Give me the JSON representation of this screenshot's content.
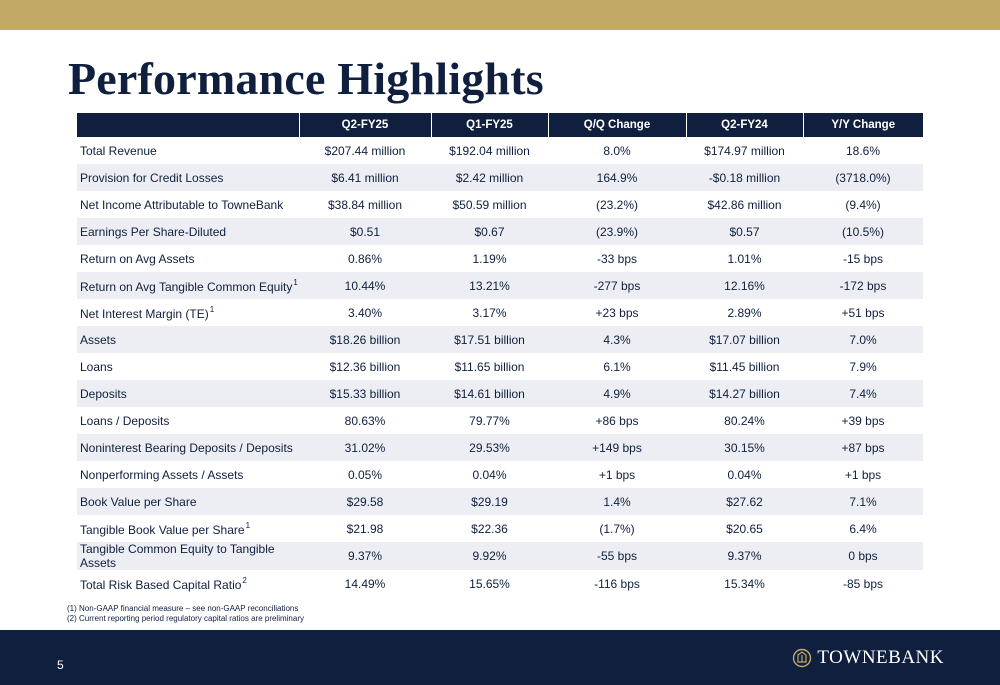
{
  "title": "Performance Highlights",
  "columns": [
    "",
    "Q2-FY25",
    "Q1-FY25",
    "Q/Q Change",
    "Q2-FY24",
    "Y/Y Change"
  ],
  "rows": [
    {
      "label": "Total Revenue",
      "sup": "",
      "values": [
        "$207.44 million",
        "$192.04 million",
        "8.0%",
        "$174.97 million",
        "18.6%"
      ]
    },
    {
      "label": "Provision for Credit Losses",
      "sup": "",
      "values": [
        "$6.41 million",
        "$2.42 million",
        "164.9%",
        "-$0.18 million",
        "(3718.0%)"
      ]
    },
    {
      "label": "Net Income Attributable to TowneBank",
      "sup": "",
      "values": [
        "$38.84 million",
        "$50.59 million",
        "(23.2%)",
        "$42.86 million",
        "(9.4%)"
      ]
    },
    {
      "label": "Earnings Per Share-Diluted",
      "sup": "",
      "values": [
        "$0.51",
        "$0.67",
        "(23.9%)",
        "$0.57",
        "(10.5%)"
      ]
    },
    {
      "label": "Return on Avg Assets",
      "sup": "",
      "values": [
        "0.86%",
        "1.19%",
        "-33 bps",
        "1.01%",
        "-15 bps"
      ]
    },
    {
      "label": "Return on Avg Tangible Common Equity",
      "sup": "1",
      "values": [
        "10.44%",
        "13.21%",
        "-277 bps",
        "12.16%",
        "-172 bps"
      ]
    },
    {
      "label": "Net Interest Margin (TE)",
      "sup": "1",
      "values": [
        "3.40%",
        "3.17%",
        "+23 bps",
        "2.89%",
        "+51 bps"
      ]
    },
    {
      "label": "Assets",
      "sup": "",
      "values": [
        "$18.26 billion",
        "$17.51 billion",
        "4.3%",
        "$17.07 billion",
        "7.0%"
      ]
    },
    {
      "label": "Loans",
      "sup": "",
      "values": [
        "$12.36 billion",
        "$11.65 billion",
        "6.1%",
        "$11.45 billion",
        "7.9%"
      ]
    },
    {
      "label": "Deposits",
      "sup": "",
      "values": [
        "$15.33 billion",
        "$14.61 billion",
        "4.9%",
        "$14.27 billion",
        "7.4%"
      ]
    },
    {
      "label": "Loans / Deposits",
      "sup": "",
      "values": [
        "80.63%",
        "79.77%",
        "+86 bps",
        "80.24%",
        "+39 bps"
      ]
    },
    {
      "label": "Noninterest Bearing Deposits / Deposits",
      "sup": "",
      "values": [
        "31.02%",
        "29.53%",
        "+149 bps",
        "30.15%",
        "+87 bps"
      ]
    },
    {
      "label": "Nonperforming Assets / Assets",
      "sup": "",
      "values": [
        "0.05%",
        "0.04%",
        "+1 bps",
        "0.04%",
        "+1 bps"
      ]
    },
    {
      "label": "Book Value per Share",
      "sup": "",
      "values": [
        "$29.58",
        "$29.19",
        "1.4%",
        "$27.62",
        "7.1%"
      ]
    },
    {
      "label": "Tangible Book Value per Share",
      "sup": "1",
      "values": [
        "$21.98",
        "$22.36",
        "(1.7%)",
        "$20.65",
        "6.4%"
      ]
    },
    {
      "label": "Tangible Common Equity to Tangible Assets",
      "sup": "",
      "values": [
        "9.37%",
        "9.92%",
        "-55 bps",
        "9.37%",
        "0 bps"
      ]
    },
    {
      "label": "Total Risk Based Capital Ratio",
      "sup": "2",
      "values": [
        "14.49%",
        "15.65%",
        "-116 bps",
        "15.34%",
        "-85 bps"
      ]
    }
  ],
  "footnotes": [
    "(1) Non-GAAP financial measure – see non-GAAP reconciliations",
    "(2) Current reporting period regulatory capital ratios are preliminary"
  ],
  "page_number": "5",
  "logo_text": "TOWNEBANK",
  "colors": {
    "navy": "#0f1f3d",
    "gold": "#c2a965",
    "row_shade": "#eceef3"
  }
}
